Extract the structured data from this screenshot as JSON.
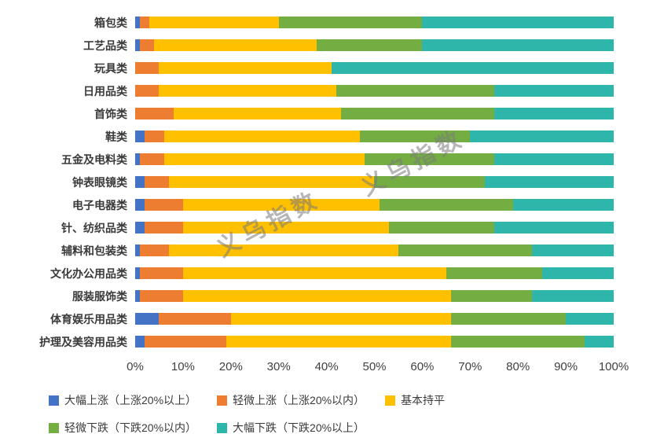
{
  "watermark": {
    "text": "义乌指数"
  },
  "legend": {
    "rows": [
      [
        0,
        1,
        2
      ],
      [
        3,
        4
      ]
    ]
  },
  "chart_data": {
    "type": "bar",
    "orientation": "horizontal",
    "stacked": true,
    "unit": "percent",
    "title": "",
    "xlabel": "",
    "ylabel": "",
    "xlim": [
      0,
      100
    ],
    "grid": false,
    "legend_position": "bottom",
    "categories": [
      "箱包类",
      "工艺品类",
      "玩具类",
      "日用品类",
      "首饰类",
      "鞋类",
      "五金及电料类",
      "钟表眼镜类",
      "电子电器类",
      "针、纺织品类",
      "辅料和包装类",
      "文化办公用品类",
      "服装服饰类",
      "体育娱乐用品类",
      "护理及美容用品类"
    ],
    "x_ticks": [
      "0%",
      "10%",
      "20%",
      "30%",
      "40%",
      "50%",
      "60%",
      "70%",
      "80%",
      "90%",
      "100%"
    ],
    "series": [
      {
        "name": "大幅上涨（上涨20%以上）",
        "color": "#4472C4",
        "values": [
          1,
          1,
          0,
          0,
          0,
          2,
          1,
          2,
          2,
          2,
          1,
          1,
          1,
          5,
          2
        ]
      },
      {
        "name": "轻微上涨（上涨20%以内）",
        "color": "#ED7D31",
        "values": [
          2,
          3,
          5,
          5,
          8,
          4,
          5,
          5,
          8,
          8,
          6,
          9,
          9,
          15,
          17
        ]
      },
      {
        "name": "基本持平",
        "color": "#FFC000",
        "values": [
          27,
          34,
          36,
          37,
          35,
          41,
          42,
          43,
          41,
          43,
          48,
          55,
          56,
          46,
          47
        ]
      },
      {
        "name": "轻微下跌（下跌20%以内）",
        "color": "#74AD41",
        "values": [
          30,
          22,
          0,
          33,
          32,
          23,
          27,
          23,
          28,
          22,
          28,
          20,
          17,
          24,
          28
        ]
      },
      {
        "name": "大幅下跌（下跌20%以上）",
        "color": "#2FB6AA",
        "values": [
          40,
          40,
          59,
          25,
          25,
          30,
          25,
          27,
          21,
          25,
          17,
          15,
          17,
          10,
          6
        ]
      }
    ]
  }
}
